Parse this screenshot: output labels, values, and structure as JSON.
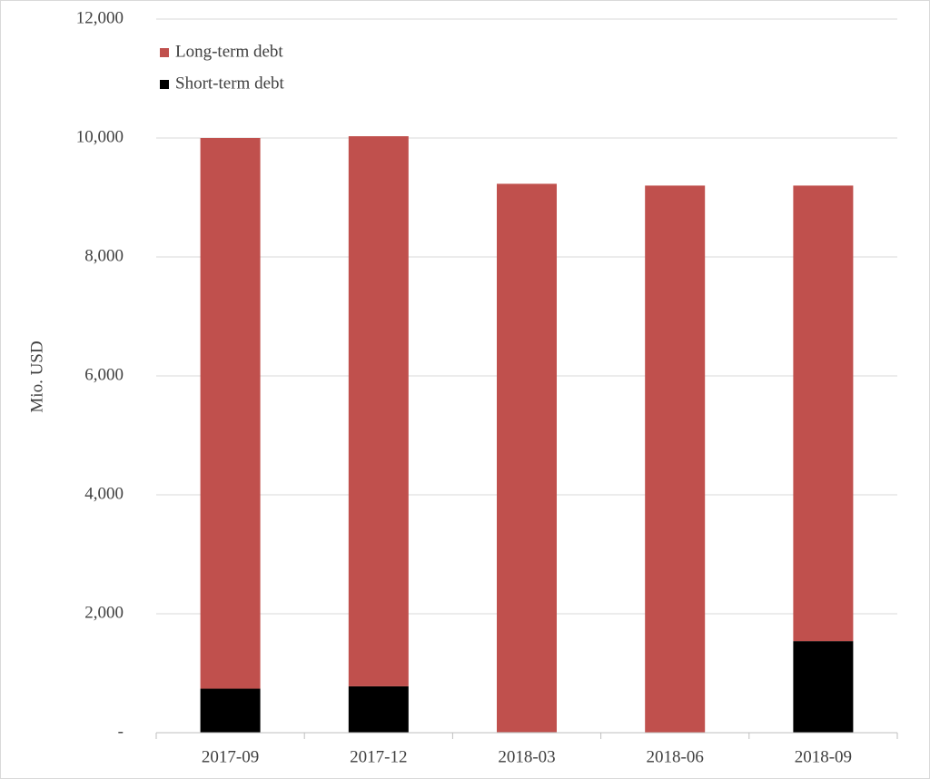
{
  "chart_data": {
    "type": "stacked_bar",
    "y_axis_label": "Mio. USD",
    "categories": [
      "2017-09",
      "2017-12",
      "2018-03",
      "2018-06",
      "2018-09"
    ],
    "series": [
      {
        "name": "Long-term debt",
        "color": "#c0504d",
        "values": [
          9260,
          9250,
          9220,
          9200,
          7660
        ]
      },
      {
        "name": "Short-term debt",
        "color": "#000000",
        "values": [
          740,
          780,
          10,
          0,
          1540
        ]
      }
    ],
    "ylim": [
      0,
      12000
    ],
    "yticks": [
      {
        "value": 0,
        "label": "-"
      },
      {
        "value": 2000,
        "label": "2,000"
      },
      {
        "value": 4000,
        "label": "4,000"
      },
      {
        "value": 6000,
        "label": "6,000"
      },
      {
        "value": 8000,
        "label": "8,000"
      },
      {
        "value": 10000,
        "label": "10,000"
      },
      {
        "value": 12000,
        "label": "12,000"
      }
    ],
    "grid": true,
    "legend": "top-left"
  }
}
